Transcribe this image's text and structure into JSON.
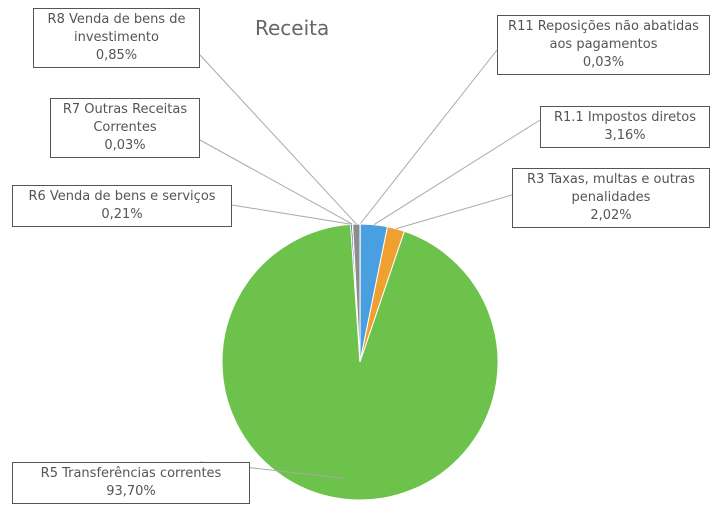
{
  "chart_data": {
    "type": "pie",
    "title": "Receita",
    "categories": [
      "R11 Reposições não abatidas aos pagamentos",
      "R1.1 Impostos diretos",
      "R3 Taxas, multas e outras penalidades",
      "R5 Transferências correntes",
      "R6 Venda de bens e serviços",
      "R7 Outras Receitas Correntes",
      "R8 Venda de bens de investimento"
    ],
    "values": [
      0.03,
      3.16,
      2.02,
      93.7,
      0.21,
      0.03,
      0.85
    ],
    "value_labels": [
      "0,03%",
      "3,16%",
      "2,02%",
      "93,70%",
      "0,21%",
      "0,03%",
      "0,85%"
    ],
    "colors": [
      "#a5a5a5",
      "#4a9fe0",
      "#f0a030",
      "#6cc24a",
      "#3c5a8c",
      "#e8c840",
      "#8c8c8c"
    ]
  }
}
